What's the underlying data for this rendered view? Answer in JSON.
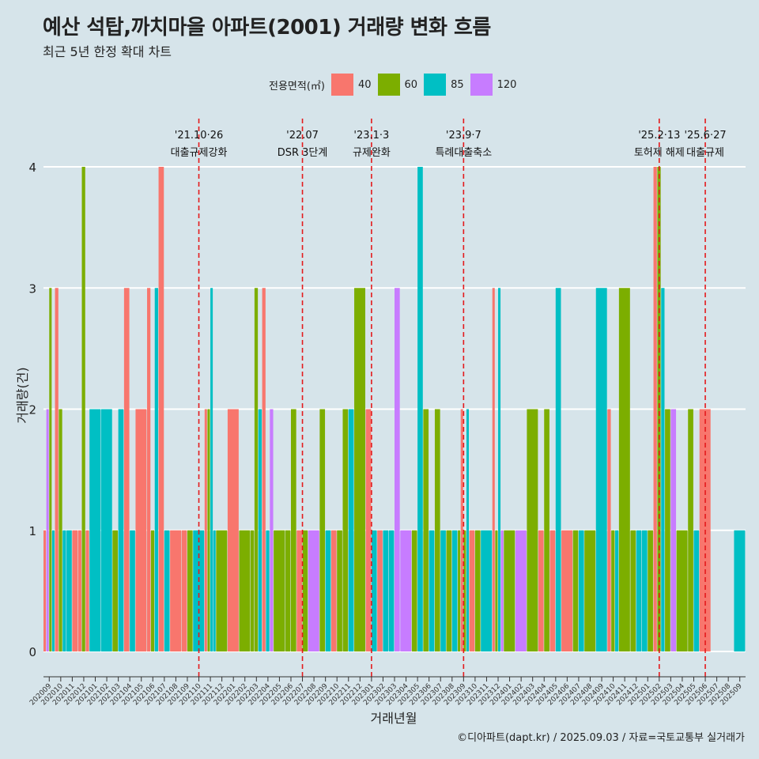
{
  "chart_data": {
    "type": "bar",
    "title": "예산 석탑,까치마을 아파트(2001) 거래량 변화 흐름",
    "subtitle": "최근 5년 한정 확대 차트",
    "xlabel": "거래년월",
    "ylabel": "거래량(건)",
    "caption": "©디아파트(dapt.kr) / 2025.09.03 / 자료=국토교통부 실거래가",
    "ylim": [
      0,
      4
    ],
    "yticks": [
      0,
      1,
      2,
      3,
      4
    ],
    "grid": true,
    "legend": {
      "title": "전용면적(㎡)",
      "position": "top",
      "entries": [
        {
          "label": "40",
          "color": "#f8766d"
        },
        {
          "label": "60",
          "color": "#7cae00"
        },
        {
          "label": "85",
          "color": "#00bfc4"
        },
        {
          "label": "120",
          "color": "#c77cff"
        }
      ]
    },
    "categories": [
      "202009",
      "202010",
      "202011",
      "202012",
      "202101",
      "202102",
      "202103",
      "202104",
      "202105",
      "202106",
      "202107",
      "202108",
      "202109",
      "202110",
      "202111",
      "202112",
      "202201",
      "202202",
      "202203",
      "202204",
      "202205",
      "202206",
      "202207",
      "202208",
      "202209",
      "202210",
      "202211",
      "202212",
      "202301",
      "202302",
      "202303",
      "202304",
      "202305",
      "202306",
      "202307",
      "202308",
      "202309",
      "202310",
      "202311",
      "202312",
      "202401",
      "202402",
      "202403",
      "202404",
      "202405",
      "202406",
      "202407",
      "202408",
      "202409",
      "202410",
      "202411",
      "202412",
      "202501",
      "202502",
      "202503",
      "202504",
      "202505",
      "202506",
      "202507",
      "202508",
      "202509"
    ],
    "months": [
      {
        "m": "202009",
        "bars": [
          {
            "s": "40",
            "v": 1
          },
          {
            "s": "120",
            "v": 2
          },
          {
            "s": "60",
            "v": 3
          },
          {
            "s": "85",
            "v": 1
          }
        ]
      },
      {
        "m": "202010",
        "bars": [
          {
            "s": "40",
            "v": 3
          },
          {
            "s": "60",
            "v": 2
          },
          {
            "s": "85",
            "v": 1
          }
        ]
      },
      {
        "m": "202011",
        "bars": [
          {
            "s": "85",
            "v": 1
          },
          {
            "s": "40",
            "v": 1
          }
        ]
      },
      {
        "m": "202012",
        "bars": [
          {
            "s": "40",
            "v": 1
          },
          {
            "s": "60",
            "v": 4
          },
          {
            "s": "40",
            "v": 1
          }
        ]
      },
      {
        "m": "202101",
        "bars": [
          {
            "s": "85",
            "v": 2
          }
        ]
      },
      {
        "m": "202102",
        "bars": [
          {
            "s": "85",
            "v": 2
          }
        ]
      },
      {
        "m": "202103",
        "bars": [
          {
            "s": "60",
            "v": 1
          },
          {
            "s": "85",
            "v": 2
          }
        ]
      },
      {
        "m": "202104",
        "bars": [
          {
            "s": "40",
            "v": 3
          },
          {
            "s": "85",
            "v": 1
          }
        ]
      },
      {
        "m": "202105",
        "bars": [
          {
            "s": "40",
            "v": 2
          }
        ]
      },
      {
        "m": "202106",
        "bars": [
          {
            "s": "40",
            "v": 3
          },
          {
            "s": "60",
            "v": 1
          },
          {
            "s": "85",
            "v": 3
          }
        ]
      },
      {
        "m": "202107",
        "bars": [
          {
            "s": "40",
            "v": 4
          },
          {
            "s": "85",
            "v": 1
          }
        ]
      },
      {
        "m": "202108",
        "bars": [
          {
            "s": "40",
            "v": 1
          }
        ]
      },
      {
        "m": "202109",
        "bars": [
          {
            "s": "40",
            "v": 1
          },
          {
            "s": "60",
            "v": 1
          }
        ]
      },
      {
        "m": "202110",
        "bars": [
          {
            "s": "85",
            "v": 1
          }
        ]
      },
      {
        "m": "202111",
        "bars": [
          {
            "s": "40",
            "v": 2
          },
          {
            "s": "60",
            "v": 2
          },
          {
            "s": "85",
            "v": 3
          },
          {
            "s": "85",
            "v": 1
          }
        ]
      },
      {
        "m": "202112",
        "bars": [
          {
            "s": "60",
            "v": 1
          }
        ]
      },
      {
        "m": "202201",
        "bars": [
          {
            "s": "40",
            "v": 2
          }
        ]
      },
      {
        "m": "202202",
        "bars": [
          {
            "s": "60",
            "v": 1
          }
        ]
      },
      {
        "m": "202203",
        "bars": [
          {
            "s": "60",
            "v": 1
          },
          {
            "s": "60",
            "v": 3
          },
          {
            "s": "85",
            "v": 2
          }
        ]
      },
      {
        "m": "202204",
        "bars": [
          {
            "s": "40",
            "v": 3
          },
          {
            "s": "85",
            "v": 1
          },
          {
            "s": "120",
            "v": 2
          }
        ]
      },
      {
        "m": "202205",
        "bars": [
          {
            "s": "60",
            "v": 1
          }
        ]
      },
      {
        "m": "202206",
        "bars": [
          {
            "s": "60",
            "v": 1
          },
          {
            "s": "60",
            "v": 2
          }
        ]
      },
      {
        "m": "202207",
        "bars": [
          {
            "s": "40",
            "v": 1
          },
          {
            "s": "60",
            "v": 1
          }
        ]
      },
      {
        "m": "202208",
        "bars": [
          {
            "s": "120",
            "v": 1
          }
        ]
      },
      {
        "m": "202209",
        "bars": [
          {
            "s": "60",
            "v": 2
          },
          {
            "s": "85",
            "v": 1
          }
        ]
      },
      {
        "m": "202210",
        "bars": [
          {
            "s": "40",
            "v": 1
          },
          {
            "s": "60",
            "v": 1
          }
        ]
      },
      {
        "m": "202211",
        "bars": [
          {
            "s": "60",
            "v": 2
          },
          {
            "s": "85",
            "v": 2
          }
        ]
      },
      {
        "m": "202212",
        "bars": [
          {
            "s": "60",
            "v": 3
          }
        ]
      },
      {
        "m": "202301",
        "bars": [
          {
            "s": "40",
            "v": 2
          },
          {
            "s": "85",
            "v": 1
          }
        ]
      },
      {
        "m": "202302",
        "bars": [
          {
            "s": "40",
            "v": 1
          },
          {
            "s": "85",
            "v": 1
          }
        ]
      },
      {
        "m": "202303",
        "bars": [
          {
            "s": "85",
            "v": 1
          },
          {
            "s": "120",
            "v": 3
          }
        ]
      },
      {
        "m": "202304",
        "bars": [
          {
            "s": "120",
            "v": 1
          }
        ]
      },
      {
        "m": "202305",
        "bars": [
          {
            "s": "60",
            "v": 1
          },
          {
            "s": "85",
            "v": 4
          }
        ]
      },
      {
        "m": "202306",
        "bars": [
          {
            "s": "60",
            "v": 2
          },
          {
            "s": "85",
            "v": 1
          }
        ]
      },
      {
        "m": "202307",
        "bars": [
          {
            "s": "60",
            "v": 2
          },
          {
            "s": "85",
            "v": 1
          }
        ]
      },
      {
        "m": "202308",
        "bars": [
          {
            "s": "60",
            "v": 1
          },
          {
            "s": "85",
            "v": 1
          }
        ]
      },
      {
        "m": "202309",
        "bars": [
          {
            "s": "60",
            "v": 1
          },
          {
            "s": "40",
            "v": 2
          },
          {
            "s": "60",
            "v": 1
          },
          {
            "s": "85",
            "v": 2
          }
        ]
      },
      {
        "m": "202310",
        "bars": [
          {
            "s": "40",
            "v": 1
          },
          {
            "s": "60",
            "v": 1
          }
        ]
      },
      {
        "m": "202311",
        "bars": [
          {
            "s": "85",
            "v": 1
          }
        ]
      },
      {
        "m": "202312",
        "bars": [
          {
            "s": "40",
            "v": 3
          },
          {
            "s": "60",
            "v": 1
          },
          {
            "s": "85",
            "v": 3
          },
          {
            "s": "120",
            "v": 1
          }
        ]
      },
      {
        "m": "202401",
        "bars": [
          {
            "s": "60",
            "v": 1
          }
        ]
      },
      {
        "m": "202402",
        "bars": [
          {
            "s": "120",
            "v": 1
          }
        ]
      },
      {
        "m": "202403",
        "bars": [
          {
            "s": "60",
            "v": 2
          }
        ]
      },
      {
        "m": "202404",
        "bars": [
          {
            "s": "40",
            "v": 1
          },
          {
            "s": "60",
            "v": 2
          }
        ]
      },
      {
        "m": "202405",
        "bars": [
          {
            "s": "40",
            "v": 1
          },
          {
            "s": "85",
            "v": 3
          }
        ]
      },
      {
        "m": "202406",
        "bars": [
          {
            "s": "40",
            "v": 1
          }
        ]
      },
      {
        "m": "202407",
        "bars": [
          {
            "s": "60",
            "v": 1
          },
          {
            "s": "85",
            "v": 1
          }
        ]
      },
      {
        "m": "202408",
        "bars": [
          {
            "s": "60",
            "v": 1
          }
        ]
      },
      {
        "m": "202409",
        "bars": [
          {
            "s": "85",
            "v": 3
          }
        ]
      },
      {
        "m": "202410",
        "bars": [
          {
            "s": "40",
            "v": 2
          },
          {
            "s": "60",
            "v": 1
          },
          {
            "s": "85",
            "v": 1
          }
        ]
      },
      {
        "m": "202411",
        "bars": [
          {
            "s": "60",
            "v": 3
          }
        ]
      },
      {
        "m": "202412",
        "bars": [
          {
            "s": "60",
            "v": 1
          },
          {
            "s": "85",
            "v": 1
          }
        ]
      },
      {
        "m": "202501",
        "bars": [
          {
            "s": "85",
            "v": 1
          },
          {
            "s": "60",
            "v": 1
          }
        ]
      },
      {
        "m": "202502",
        "bars": [
          {
            "s": "40",
            "v": 4
          },
          {
            "s": "60",
            "v": 4
          },
          {
            "s": "85",
            "v": 3
          }
        ]
      },
      {
        "m": "202503",
        "bars": [
          {
            "s": "60",
            "v": 2
          },
          {
            "s": "120",
            "v": 2
          }
        ]
      },
      {
        "m": "202504",
        "bars": [
          {
            "s": "60",
            "v": 1
          }
        ]
      },
      {
        "m": "202505",
        "bars": [
          {
            "s": "60",
            "v": 2
          },
          {
            "s": "85",
            "v": 1
          }
        ]
      },
      {
        "m": "202506",
        "bars": [
          {
            "s": "40",
            "v": 2
          }
        ]
      },
      {
        "m": "202507",
        "bars": []
      },
      {
        "m": "202508",
        "bars": []
      },
      {
        "m": "202509",
        "bars": [
          {
            "s": "85",
            "v": 1
          }
        ]
      }
    ],
    "annotations": [
      {
        "at": "202110",
        "date": "'21.10·26",
        "label": "대출규제강화"
      },
      {
        "at": "202207",
        "date": "'22.07",
        "label": "DSR 3단계"
      },
      {
        "at": "202301",
        "date": "'23.1·3",
        "label": "규제완화"
      },
      {
        "at": "202309",
        "date": "'23.9·7",
        "label": "특례대출축소"
      },
      {
        "at": "202502",
        "date": "'25.2·13",
        "label": "토허제 해제"
      },
      {
        "at": "202506",
        "date": "'25.6·27",
        "label": "대출규제"
      }
    ]
  }
}
